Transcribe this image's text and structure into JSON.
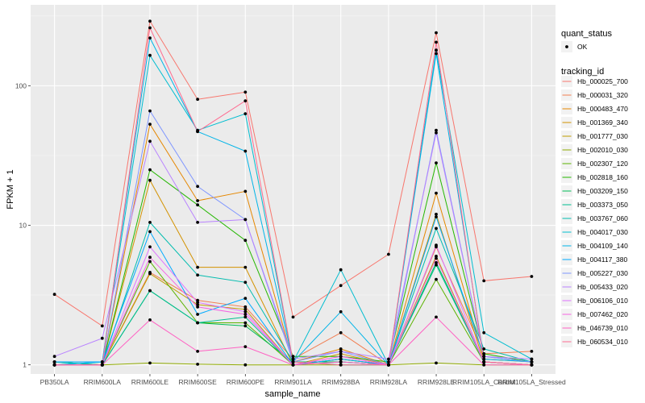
{
  "chart_data": {
    "type": "line",
    "title": "",
    "xlabel": "sample_name",
    "ylabel": "FPKM + 1",
    "y_scale": "log10",
    "ylim": [
      0.86,
      380
    ],
    "y_ticks": [
      1,
      10,
      100
    ],
    "y_tick_labels": [
      "1",
      "10",
      "100"
    ],
    "grid": true,
    "legend_position": "right",
    "categories": [
      "PB350LA",
      "RRIM600LA",
      "RRIM600LE",
      "RRIM600SE",
      "RRIM600PE",
      "RRIM901LA",
      "RRIM928BA",
      "RRIM928LA",
      "RRIM928LE",
      "RRIM105LA_Control",
      "RRIM105LA_Stressed"
    ],
    "quant_status_legend": {
      "title": "quant_status",
      "items": [
        "OK"
      ]
    },
    "tracking_legend_title": "tracking_id",
    "series": [
      {
        "name": "Hb_000025_700",
        "color": "#F8766D",
        "values": [
          3.2,
          1.9,
          290,
          80,
          90,
          2.2,
          3.7,
          6.2,
          240,
          4.0,
          4.3
        ]
      },
      {
        "name": "Hb_000031_320",
        "color": "#F17D50",
        "values": [
          1.0,
          1.0,
          4.6,
          2.9,
          2.6,
          1.1,
          1.7,
          1.0,
          7.0,
          1.2,
          1.25
        ]
      },
      {
        "name": "Hb_000483_470",
        "color": "#E58700",
        "values": [
          1.0,
          1.0,
          53,
          15,
          17.5,
          1.05,
          1.3,
          1.0,
          17,
          1.1,
          1.05
        ]
      },
      {
        "name": "Hb_001369_340",
        "color": "#D39200",
        "values": [
          1.0,
          1.0,
          21,
          5.0,
          5.0,
          1.0,
          1.2,
          1.0,
          12,
          1.05,
          1.0
        ]
      },
      {
        "name": "Hb_001777_030",
        "color": "#BE9C00",
        "values": [
          1.0,
          1.0,
          4.5,
          2.7,
          2.5,
          1.0,
          1.1,
          1.0,
          6.0,
          1.05,
          1.0
        ]
      },
      {
        "name": "Hb_002010_030",
        "color": "#8FAA00",
        "values": [
          1.0,
          1.0,
          1.03,
          1.01,
          1.0,
          1.0,
          1.0,
          1.0,
          1.03,
          1.0,
          1.0
        ]
      },
      {
        "name": "Hb_002307_120",
        "color": "#5BB300",
        "values": [
          1.0,
          1.0,
          5.5,
          2.0,
          2.0,
          1.0,
          1.1,
          1.0,
          4.1,
          1.05,
          1.0
        ]
      },
      {
        "name": "Hb_002818_160",
        "color": "#24B700",
        "values": [
          1.05,
          1.0,
          25,
          14,
          7.8,
          1.15,
          1.15,
          1.05,
          28,
          1.2,
          1.05
        ]
      },
      {
        "name": "Hb_003209_150",
        "color": "#00BC56",
        "values": [
          1.05,
          1.0,
          3.4,
          2.0,
          1.9,
          1.05,
          1.05,
          1.0,
          5.4,
          1.05,
          1.0
        ]
      },
      {
        "name": "Hb_003373_050",
        "color": "#00BD90",
        "values": [
          1.0,
          1.0,
          3.4,
          2.0,
          2.2,
          1.0,
          1.05,
          1.0,
          5.2,
          1.05,
          1.0
        ]
      },
      {
        "name": "Hb_003767_060",
        "color": "#00BCAE",
        "values": [
          1.05,
          1.0,
          10.5,
          4.4,
          3.9,
          1.05,
          1.0,
          1.0,
          9.5,
          1.3,
          1.05
        ]
      },
      {
        "name": "Hb_004017_030",
        "color": "#00BDD0",
        "values": [
          1.0,
          1.05,
          165,
          48,
          63,
          1.05,
          4.8,
          1.0,
          180,
          1.7,
          1.1
        ]
      },
      {
        "name": "Hb_004109_140",
        "color": "#00B4E8",
        "values": [
          1.0,
          1.05,
          220,
          47,
          34,
          1.05,
          2.4,
          1.0,
          170,
          1.1,
          1.05
        ]
      },
      {
        "name": "Hb_004117_380",
        "color": "#00A9FF",
        "values": [
          1.05,
          1.05,
          9,
          2.3,
          3.0,
          1.0,
          1.1,
          1.0,
          11.5,
          1.15,
          1.05
        ]
      },
      {
        "name": "Hb_005227_030",
        "color": "#7F96FF",
        "values": [
          1.0,
          1.0,
          66,
          19,
          11,
          1.05,
          1.25,
          1.0,
          48,
          1.15,
          1.05
        ]
      },
      {
        "name": "Hb_005433_020",
        "color": "#B983FF",
        "values": [
          1.15,
          1.55,
          40,
          10.5,
          11,
          1.1,
          1.25,
          1.1,
          46,
          1.15,
          1.1
        ]
      },
      {
        "name": "Hb_006106_010",
        "color": "#DE73FF",
        "values": [
          1.0,
          1.0,
          7,
          2.8,
          2.4,
          1.0,
          1.15,
          1.0,
          7.2,
          1.05,
          1.0
        ]
      },
      {
        "name": "Hb_007462_020",
        "color": "#F564E3",
        "values": [
          1.0,
          1.0,
          5.9,
          2.6,
          2.3,
          1.0,
          1.15,
          1.0,
          5.8,
          1.05,
          1.0
        ]
      },
      {
        "name": "Hb_046739_010",
        "color": "#FF61C3",
        "values": [
          1.0,
          1.0,
          2.1,
          1.25,
          1.35,
          1.0,
          1.05,
          1.0,
          2.2,
          1.0,
          1.0
        ]
      },
      {
        "name": "Hb_060534_010",
        "color": "#FF6C91",
        "values": [
          1.0,
          1.0,
          260,
          47,
          78,
          1.05,
          1.0,
          1.0,
          205,
          1.05,
          1.0
        ]
      }
    ]
  }
}
